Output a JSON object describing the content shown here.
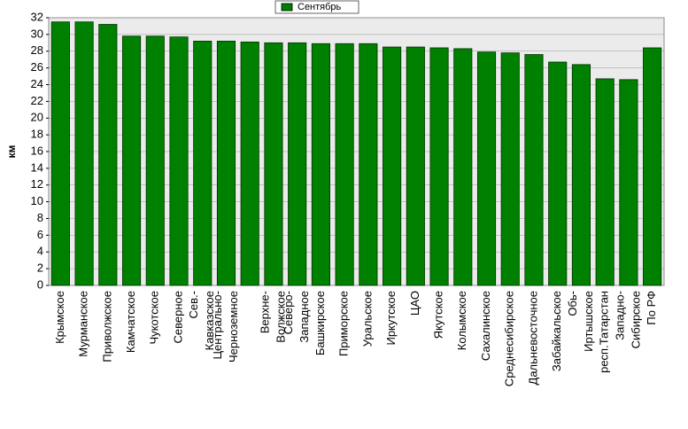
{
  "chart_data": {
    "type": "bar",
    "y_label": "км",
    "legend": "Сентябрь",
    "color": "#008000",
    "categories": [
      [
        "Крымское"
      ],
      [
        "Мурманское"
      ],
      [
        "Приволжское"
      ],
      [
        "Камчатское"
      ],
      [
        "Чукотское"
      ],
      [
        "Северное"
      ],
      [
        "Сев.-",
        "Кавказское"
      ],
      [
        "Центрально-",
        "Черноземное"
      ],
      null,
      [
        "Верхне-",
        "Волжское"
      ],
      [
        "Северо-",
        "Западное"
      ],
      [
        "Башкирское"
      ],
      [
        "Приморское"
      ],
      [
        "Уральское"
      ],
      [
        "Иркутское"
      ],
      [
        "ЦАО"
      ],
      [
        "Якутское"
      ],
      [
        "Колымское"
      ],
      [
        "Сахалинское"
      ],
      [
        "Среднесибирское"
      ],
      [
        "Дальневосточное"
      ],
      [
        "Забайкальское"
      ],
      [
        "Обь-",
        "Иртышское"
      ],
      [
        "респ.Татарстан"
      ],
      [
        "Западно-",
        "Сибирское"
      ],
      [
        "По РФ"
      ]
    ],
    "values": [
      31.5,
      31.5,
      31.2,
      29.8,
      29.8,
      29.7,
      29.2,
      29.2,
      29.1,
      29.0,
      29.0,
      28.9,
      28.9,
      28.9,
      28.5,
      28.5,
      28.4,
      28.3,
      27.9,
      27.8,
      27.6,
      26.7,
      26.4,
      24.7,
      24.6,
      28.4
    ],
    "ylim": [
      0,
      32
    ],
    "yticks": [
      0,
      2,
      4,
      6,
      8,
      10,
      12,
      14,
      16,
      18,
      20,
      22,
      24,
      26,
      28,
      30,
      32
    ],
    "grid": true
  }
}
